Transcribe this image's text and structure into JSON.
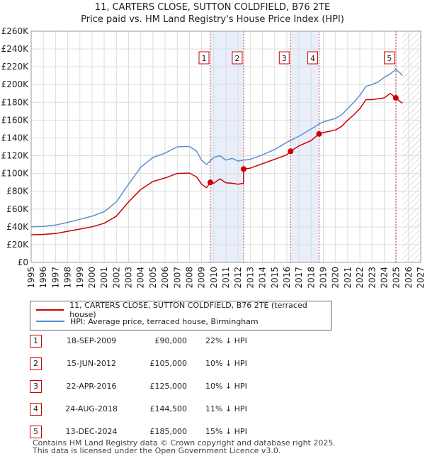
{
  "title_line1": "11, CARTERS CLOSE, SUTTON COLDFIELD, B76 2TE",
  "title_line2": "Price paid vs. HM Land Registry's House Price Index (HPI)",
  "chart_data": {
    "type": "line",
    "title": "11, CARTERS CLOSE, SUTTON COLDFIELD, B76 2TE",
    "subtitle": "Price paid vs. HM Land Registry's House Price Index (HPI)",
    "xlabel": "",
    "ylabel": "",
    "xlim": [
      1995,
      2027
    ],
    "ylim": [
      0,
      260000
    ],
    "x_ticks": [
      1995,
      1996,
      1997,
      1998,
      1999,
      2000,
      2001,
      2002,
      2003,
      2004,
      2005,
      2006,
      2007,
      2008,
      2009,
      2010,
      2011,
      2012,
      2013,
      2014,
      2015,
      2016,
      2017,
      2018,
      2019,
      2020,
      2021,
      2022,
      2023,
      2024,
      2025,
      2026,
      2027
    ],
    "y_ticks": [
      0,
      20000,
      40000,
      60000,
      80000,
      100000,
      120000,
      140000,
      160000,
      180000,
      200000,
      220000,
      240000,
      260000
    ],
    "y_tick_labels": [
      "£0",
      "£20K",
      "£40K",
      "£60K",
      "£80K",
      "£100K",
      "£120K",
      "£140K",
      "£160K",
      "£180K",
      "£200K",
      "£220K",
      "£240K",
      "£260K"
    ],
    "grid": true,
    "series": [
      {
        "name": "HPI: Average price, terraced house, Birmingham",
        "color": "#5b8fd1",
        "points": [
          [
            1995.0,
            40000
          ],
          [
            1996.0,
            40500
          ],
          [
            1997.0,
            42000
          ],
          [
            1998.0,
            45000
          ],
          [
            1999.0,
            48500
          ],
          [
            2000.0,
            52000
          ],
          [
            2001.0,
            57000
          ],
          [
            2002.0,
            68000
          ],
          [
            2003.0,
            88000
          ],
          [
            2004.0,
            107000
          ],
          [
            2005.0,
            118000
          ],
          [
            2006.0,
            123000
          ],
          [
            2007.0,
            130000
          ],
          [
            2008.0,
            130500
          ],
          [
            2008.6,
            125000
          ],
          [
            2009.0,
            115000
          ],
          [
            2009.4,
            110000
          ],
          [
            2009.7,
            114000
          ],
          [
            2010.0,
            118000
          ],
          [
            2010.5,
            120000
          ],
          [
            2011.0,
            115000
          ],
          [
            2011.5,
            117000
          ],
          [
            2012.0,
            114000
          ],
          [
            2012.5,
            115000
          ],
          [
            2013.0,
            116000
          ],
          [
            2014.0,
            121000
          ],
          [
            2015.0,
            127000
          ],
          [
            2016.0,
            135000
          ],
          [
            2017.0,
            142000
          ],
          [
            2018.0,
            150000
          ],
          [
            2018.7,
            156000
          ],
          [
            2019.0,
            158000
          ],
          [
            2019.5,
            160000
          ],
          [
            2020.0,
            162000
          ],
          [
            2020.5,
            166000
          ],
          [
            2021.0,
            173000
          ],
          [
            2021.5,
            180000
          ],
          [
            2022.0,
            188000
          ],
          [
            2022.5,
            198000
          ],
          [
            2023.0,
            200000
          ],
          [
            2023.5,
            203000
          ],
          [
            2024.0,
            208000
          ],
          [
            2024.5,
            212000
          ],
          [
            2024.95,
            217000
          ],
          [
            2025.3,
            213000
          ],
          [
            2025.5,
            210000
          ]
        ]
      },
      {
        "name": "11, CARTERS CLOSE, SUTTON COLDFIELD, B76 2TE (terraced house)",
        "color": "#cc0000",
        "points": [
          [
            1995.0,
            31000
          ],
          [
            1996.0,
            31500
          ],
          [
            1997.0,
            32500
          ],
          [
            1998.0,
            35000
          ],
          [
            1999.0,
            37500
          ],
          [
            2000.0,
            40000
          ],
          [
            2001.0,
            44000
          ],
          [
            2002.0,
            52000
          ],
          [
            2003.0,
            68000
          ],
          [
            2004.0,
            82000
          ],
          [
            2005.0,
            91000
          ],
          [
            2006.0,
            95000
          ],
          [
            2007.0,
            100000
          ],
          [
            2008.0,
            100500
          ],
          [
            2008.6,
            96000
          ],
          [
            2009.0,
            88000
          ],
          [
            2009.4,
            84000
          ],
          [
            2009.72,
            90000
          ],
          [
            2010.0,
            89000
          ],
          [
            2010.5,
            94000
          ],
          [
            2011.0,
            89500
          ],
          [
            2011.5,
            89000
          ],
          [
            2012.0,
            88000
          ],
          [
            2012.44,
            89000
          ],
          [
            2012.45,
            105000
          ],
          [
            2013.0,
            106000
          ],
          [
            2014.0,
            111000
          ],
          [
            2015.0,
            116000
          ],
          [
            2016.0,
            121000
          ],
          [
            2016.3,
            125000
          ],
          [
            2017.0,
            131000
          ],
          [
            2018.0,
            137000
          ],
          [
            2018.64,
            144500
          ],
          [
            2019.0,
            146000
          ],
          [
            2019.5,
            147500
          ],
          [
            2020.0,
            149000
          ],
          [
            2020.5,
            153000
          ],
          [
            2021.0,
            160000
          ],
          [
            2021.5,
            166000
          ],
          [
            2022.0,
            173000
          ],
          [
            2022.5,
            183000
          ],
          [
            2023.0,
            183000
          ],
          [
            2023.5,
            184000
          ],
          [
            2024.0,
            185000
          ],
          [
            2024.5,
            190000
          ],
          [
            2024.95,
            185000
          ],
          [
            2025.3,
            181000
          ],
          [
            2025.5,
            179000
          ]
        ]
      }
    ],
    "sales": [
      {
        "label": "1",
        "x": 2009.72,
        "price": 90000
      },
      {
        "label": "2",
        "x": 2012.45,
        "price": 105000
      },
      {
        "label": "3",
        "x": 2016.31,
        "price": 125000
      },
      {
        "label": "4",
        "x": 2018.65,
        "price": 144500
      },
      {
        "label": "5",
        "x": 2024.95,
        "price": 185000
      }
    ],
    "shaded_ranges": [
      [
        2009.72,
        2012.45
      ],
      [
        2016.31,
        2018.65
      ]
    ],
    "hatched_from": 2025.5
  },
  "legend": {
    "property_label": "11, CARTERS CLOSE, SUTTON COLDFIELD, B76 2TE (terraced house)",
    "hpi_label": "HPI: Average price, terraced house, Birmingham",
    "property_color": "#cc0000",
    "hpi_color": "#5b8fd1"
  },
  "transactions": [
    {
      "num": "1",
      "date": "18-SEP-2009",
      "price": "£90,000",
      "hpi": "22% ↓ HPI"
    },
    {
      "num": "2",
      "date": "15-JUN-2012",
      "price": "£105,000",
      "hpi": "10% ↓ HPI"
    },
    {
      "num": "3",
      "date": "22-APR-2016",
      "price": "£125,000",
      "hpi": "10% ↓ HPI"
    },
    {
      "num": "4",
      "date": "24-AUG-2018",
      "price": "£144,500",
      "hpi": "11% ↓ HPI"
    },
    {
      "num": "5",
      "date": "13-DEC-2024",
      "price": "£185,000",
      "hpi": "15% ↓ HPI"
    }
  ],
  "footer": {
    "line1": "Contains HM Land Registry data © Crown copyright and database right 2025.",
    "line2": "This data is licensed under the Open Government Licence v3.0."
  }
}
